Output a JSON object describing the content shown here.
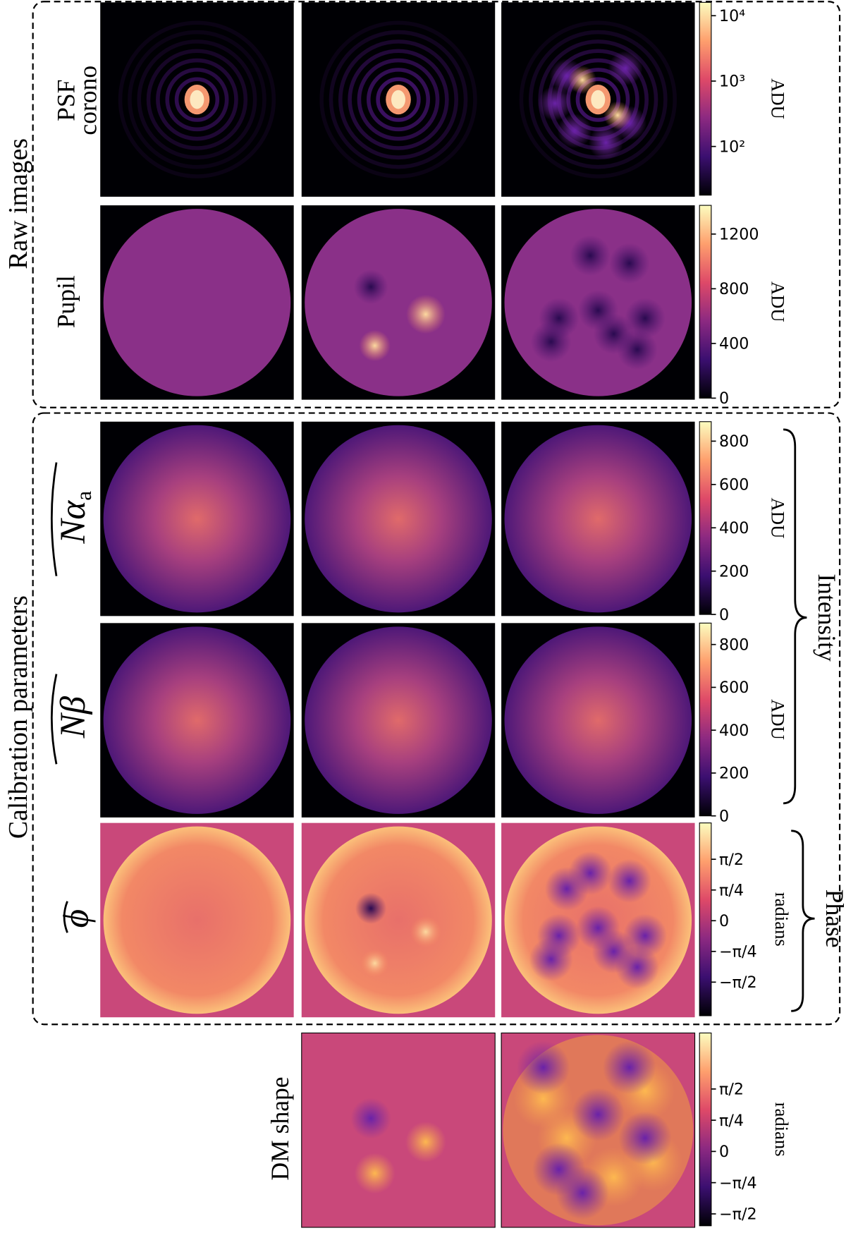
{
  "groups": [
    {
      "label": "Raw images"
    },
    {
      "label": "Calibration parameters"
    }
  ],
  "rows": [
    {
      "label": [
        "PSF",
        "corono"
      ],
      "colorbar": {
        "label": "ADU",
        "scale": "log",
        "lim": [
          18,
          16000
        ],
        "ticks": [
          {
            "value": 10000,
            "label": "10⁴"
          },
          {
            "value": 1000,
            "label": "10³"
          },
          {
            "value": 100,
            "label": "10²"
          }
        ]
      }
    },
    {
      "label": [
        "Pupil"
      ],
      "colorbar": {
        "label": "ADU",
        "lim": [
          0,
          1410
        ],
        "ticks": [
          1200,
          800,
          400,
          0
        ]
      }
    },
    {
      "label": [
        "Nα"
      ],
      "label_subscript": "a",
      "colorbar": {
        "label": "ADU",
        "lim": [
          0,
          890
        ],
        "ticks": [
          800,
          600,
          400,
          200,
          0
        ]
      }
    },
    {
      "label": [
        "Nβ"
      ],
      "colorbar": {
        "label": "ADU",
        "lim": [
          0,
          900
        ],
        "ticks": [
          800,
          600,
          400,
          200,
          0
        ]
      }
    },
    {
      "label": [
        "ϕ"
      ],
      "colorbar": {
        "label": "radians",
        "lim": [
          -2.43,
          2.5
        ],
        "ticks": [
          {
            "value": 1.5708,
            "label": "π/2"
          },
          {
            "value": 0.7854,
            "label": "π/4"
          },
          0,
          {
            "value": -0.7854,
            "label": "−π/4"
          },
          {
            "value": -1.5708,
            "label": "−π/2"
          }
        ]
      }
    },
    {
      "label": [
        "DM shape"
      ],
      "colorbar": {
        "label": "radians",
        "lim": [
          -1.87,
          2.98
        ],
        "ticks": [
          {
            "value": 1.5708,
            "label": "π/2"
          },
          {
            "value": 0.7854,
            "label": "π/4"
          },
          0,
          {
            "value": -0.7854,
            "label": "−π/4"
          },
          {
            "value": -1.5708,
            "label": "−π/2"
          }
        ]
      }
    }
  ],
  "braces": [
    {
      "label": "Intensity"
    },
    {
      "label": "Phase"
    }
  ]
}
